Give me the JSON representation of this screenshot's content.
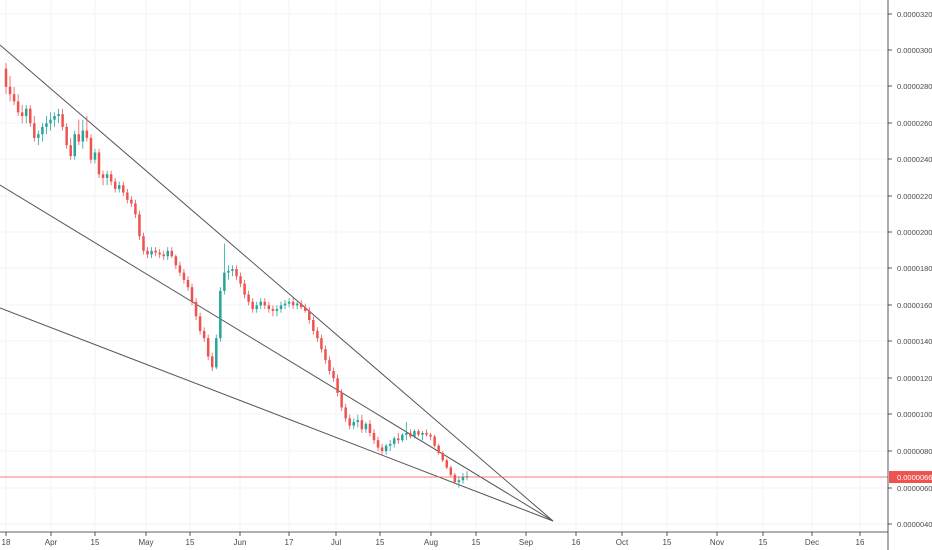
{
  "chart_data": {
    "type": "candlestick",
    "title": "",
    "xlabel": "",
    "ylabel": "",
    "ylim": [
      4e-06,
      3.3e-06
    ],
    "y_ticks": [
      "0.00003200",
      "0.00003000",
      "0.00002800",
      "0.00002600",
      "0.00002400",
      "0.00002200",
      "0.00002000",
      "0.00001800",
      "0.00001600",
      "0.00001400",
      "0.00001200",
      "0.00001000",
      "0.00000800",
      "0.00000600",
      "0.00000400"
    ],
    "x_ticks": [
      "18",
      "Apr",
      "15",
      "May",
      "15",
      "Jun",
      "17",
      "Jul",
      "15",
      "Aug",
      "15",
      "Sep",
      "16",
      "Oct",
      "15",
      "Nov",
      "15",
      "Dec",
      "16"
    ],
    "grid": true,
    "current_price": "0.00000663",
    "colors": {
      "up": "#26a69a",
      "down": "#ef5350",
      "trendline": "#555555",
      "current_price_line": "#ef5350",
      "grid": "#f0f3fa"
    },
    "trendlines": [
      {
        "from": [
          "Mar 18",
          3.02e-05
        ],
        "to": [
          "Sep 12",
          4.2e-06
        ]
      },
      {
        "from": [
          "Mar 18",
          2.25e-05
        ],
        "to": [
          "Sep 12",
          4.2e-06
        ]
      },
      {
        "from": [
          "Mar 18",
          1.6e-05
        ],
        "to": [
          "Sep 12",
          4.2e-06
        ]
      }
    ],
    "candles_ohlc_e8": [
      [
        2900,
        2930,
        2760,
        2800
      ],
      [
        2800,
        2860,
        2720,
        2760
      ],
      [
        2760,
        2800,
        2700,
        2720
      ],
      [
        2720,
        2760,
        2640,
        2660
      ],
      [
        2660,
        2700,
        2600,
        2640
      ],
      [
        2640,
        2700,
        2600,
        2680
      ],
      [
        2680,
        2700,
        2580,
        2600
      ],
      [
        2600,
        2640,
        2500,
        2520
      ],
      [
        2520,
        2560,
        2480,
        2540
      ],
      [
        2540,
        2600,
        2500,
        2580
      ],
      [
        2580,
        2640,
        2540,
        2600
      ],
      [
        2600,
        2660,
        2560,
        2620
      ],
      [
        2620,
        2660,
        2580,
        2640
      ],
      [
        2640,
        2680,
        2600,
        2650
      ],
      [
        2650,
        2680,
        2560,
        2580
      ],
      [
        2580,
        2600,
        2460,
        2480
      ],
      [
        2480,
        2520,
        2400,
        2420
      ],
      [
        2420,
        2560,
        2400,
        2540
      ],
      [
        2540,
        2620,
        2480,
        2500
      ],
      [
        2500,
        2620,
        2460,
        2560
      ],
      [
        2560,
        2640,
        2500,
        2520
      ],
      [
        2520,
        2540,
        2380,
        2400
      ],
      [
        2400,
        2460,
        2380,
        2440
      ],
      [
        2440,
        2460,
        2300,
        2320
      ],
      [
        2320,
        2340,
        2260,
        2300
      ],
      [
        2300,
        2340,
        2260,
        2320
      ],
      [
        2320,
        2340,
        2260,
        2280
      ],
      [
        2280,
        2300,
        2220,
        2240
      ],
      [
        2240,
        2280,
        2220,
        2260
      ],
      [
        2260,
        2280,
        2200,
        2220
      ],
      [
        2220,
        2240,
        2160,
        2180
      ],
      [
        2180,
        2200,
        2140,
        2160
      ],
      [
        2160,
        2180,
        2080,
        2100
      ],
      [
        2100,
        2120,
        1960,
        1980
      ],
      [
        1980,
        2000,
        1880,
        1900
      ],
      [
        1900,
        1920,
        1860,
        1880
      ],
      [
        1880,
        1920,
        1860,
        1900
      ],
      [
        1900,
        1920,
        1870,
        1890
      ],
      [
        1890,
        1910,
        1860,
        1880
      ],
      [
        1880,
        1900,
        1850,
        1870
      ],
      [
        1870,
        1920,
        1850,
        1900
      ],
      [
        1900,
        1920,
        1860,
        1870
      ],
      [
        1870,
        1880,
        1800,
        1820
      ],
      [
        1820,
        1840,
        1760,
        1780
      ],
      [
        1780,
        1800,
        1720,
        1740
      ],
      [
        1740,
        1760,
        1680,
        1700
      ],
      [
        1700,
        1720,
        1600,
        1620
      ],
      [
        1620,
        1640,
        1520,
        1540
      ],
      [
        1540,
        1560,
        1440,
        1460
      ],
      [
        1460,
        1480,
        1400,
        1420
      ],
      [
        1420,
        1440,
        1300,
        1320
      ],
      [
        1320,
        1340,
        1240,
        1260
      ],
      [
        1260,
        1440,
        1250,
        1420
      ],
      [
        1420,
        1700,
        1400,
        1680
      ],
      [
        1680,
        1940,
        1660,
        1780
      ],
      [
        1780,
        1820,
        1740,
        1790
      ],
      [
        1790,
        1820,
        1760,
        1800
      ],
      [
        1800,
        1820,
        1740,
        1760
      ],
      [
        1760,
        1780,
        1700,
        1720
      ],
      [
        1720,
        1740,
        1640,
        1660
      ],
      [
        1660,
        1680,
        1600,
        1620
      ],
      [
        1620,
        1640,
        1560,
        1580
      ],
      [
        1580,
        1620,
        1560,
        1600
      ],
      [
        1600,
        1640,
        1580,
        1620
      ],
      [
        1620,
        1640,
        1580,
        1600
      ],
      [
        1600,
        1620,
        1560,
        1580
      ],
      [
        1580,
        1600,
        1540,
        1570
      ],
      [
        1570,
        1600,
        1540,
        1580
      ],
      [
        1580,
        1620,
        1560,
        1600
      ],
      [
        1600,
        1630,
        1580,
        1610
      ],
      [
        1610,
        1640,
        1590,
        1620
      ],
      [
        1620,
        1640,
        1580,
        1600
      ],
      [
        1600,
        1620,
        1580,
        1610
      ],
      [
        1610,
        1630,
        1580,
        1590
      ],
      [
        1590,
        1610,
        1560,
        1570
      ],
      [
        1570,
        1590,
        1500,
        1520
      ],
      [
        1520,
        1540,
        1440,
        1460
      ],
      [
        1460,
        1480,
        1400,
        1420
      ],
      [
        1420,
        1440,
        1340,
        1360
      ],
      [
        1360,
        1380,
        1280,
        1300
      ],
      [
        1300,
        1320,
        1220,
        1240
      ],
      [
        1240,
        1260,
        1180,
        1200
      ],
      [
        1200,
        1220,
        1100,
        1120
      ],
      [
        1120,
        1140,
        1020,
        1040
      ],
      [
        1040,
        1060,
        960,
        980
      ],
      [
        980,
        1000,
        920,
        940
      ],
      [
        940,
        980,
        920,
        960
      ],
      [
        960,
        1000,
        930,
        970
      ],
      [
        970,
        1000,
        900,
        920
      ],
      [
        920,
        960,
        900,
        950
      ],
      [
        950,
        970,
        880,
        900
      ],
      [
        900,
        920,
        840,
        860
      ],
      [
        860,
        880,
        800,
        820
      ],
      [
        820,
        840,
        780,
        800
      ],
      [
        800,
        840,
        780,
        830
      ],
      [
        830,
        860,
        800,
        840
      ],
      [
        840,
        880,
        820,
        870
      ],
      [
        870,
        900,
        840,
        860
      ],
      [
        860,
        900,
        850,
        890
      ],
      [
        890,
        960,
        860,
        900
      ],
      [
        900,
        920,
        870,
        880
      ],
      [
        880,
        920,
        870,
        910
      ],
      [
        910,
        920,
        880,
        890
      ],
      [
        890,
        910,
        860,
        900
      ],
      [
        900,
        920,
        880,
        890
      ],
      [
        890,
        900,
        860,
        880
      ],
      [
        880,
        890,
        820,
        830
      ],
      [
        830,
        840,
        780,
        790
      ],
      [
        790,
        800,
        740,
        750
      ],
      [
        750,
        760,
        700,
        710
      ],
      [
        710,
        720,
        660,
        670
      ],
      [
        670,
        680,
        620,
        630
      ],
      [
        630,
        660,
        600,
        640
      ],
      [
        640,
        680,
        620,
        660
      ],
      [
        660,
        690,
        640,
        663
      ]
    ]
  }
}
